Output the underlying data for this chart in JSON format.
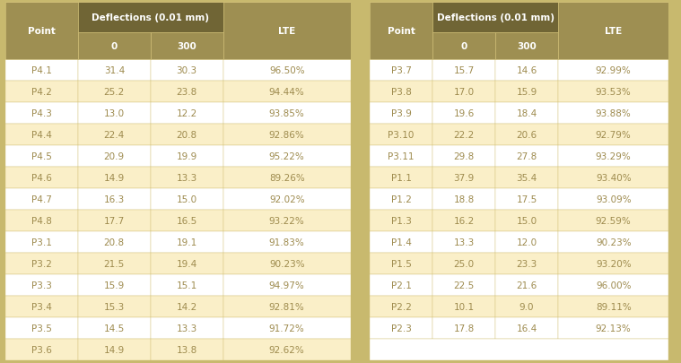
{
  "left_table": {
    "rows": [
      [
        "P4.1",
        "31.4",
        "30.3",
        "96.50%"
      ],
      [
        "P4.2",
        "25.2",
        "23.8",
        "94.44%"
      ],
      [
        "P4.3",
        "13.0",
        "12.2",
        "93.85%"
      ],
      [
        "P4.4",
        "22.4",
        "20.8",
        "92.86%"
      ],
      [
        "P4.5",
        "20.9",
        "19.9",
        "95.22%"
      ],
      [
        "P4.6",
        "14.9",
        "13.3",
        "89.26%"
      ],
      [
        "P4.7",
        "16.3",
        "15.0",
        "92.02%"
      ],
      [
        "P4.8",
        "17.7",
        "16.5",
        "93.22%"
      ],
      [
        "P3.1",
        "20.8",
        "19.1",
        "91.83%"
      ],
      [
        "P3.2",
        "21.5",
        "19.4",
        "90.23%"
      ],
      [
        "P3.3",
        "15.9",
        "15.1",
        "94.97%"
      ],
      [
        "P3.4",
        "15.3",
        "14.2",
        "92.81%"
      ],
      [
        "P3.5",
        "14.5",
        "13.3",
        "91.72%"
      ],
      [
        "P3.6",
        "14.9",
        "13.8",
        "92.62%"
      ]
    ]
  },
  "right_table": {
    "rows": [
      [
        "P3.7",
        "15.7",
        "14.6",
        "92.99%"
      ],
      [
        "P3.8",
        "17.0",
        "15.9",
        "93.53%"
      ],
      [
        "P3.9",
        "19.6",
        "18.4",
        "93.88%"
      ],
      [
        "P3.10",
        "22.2",
        "20.6",
        "92.79%"
      ],
      [
        "P3.11",
        "29.8",
        "27.8",
        "93.29%"
      ],
      [
        "P1.1",
        "37.9",
        "35.4",
        "93.40%"
      ],
      [
        "P1.2",
        "18.8",
        "17.5",
        "93.09%"
      ],
      [
        "P1.3",
        "16.2",
        "15.0",
        "92.59%"
      ],
      [
        "P1.4",
        "13.3",
        "12.0",
        "90.23%"
      ],
      [
        "P1.5",
        "25.0",
        "23.3",
        "93.20%"
      ],
      [
        "P2.1",
        "22.5",
        "21.6",
        "96.00%"
      ],
      [
        "P2.2",
        "10.1",
        "9.0",
        "89.11%"
      ],
      [
        "P2.3",
        "17.8",
        "16.4",
        "92.13%"
      ]
    ]
  },
  "header_bg_dark": "#706535",
  "header_bg_medium": "#9e8f52",
  "row_bg_light": "#faefc8",
  "row_bg_white": "#ffffff",
  "text_color_header": "#ffffff",
  "text_color_data": "#9e8b4e",
  "outer_bg": "#c8b96e",
  "divider_color": "#d4c27a",
  "font_size_header1": 7.5,
  "font_size_header2": 7.5,
  "font_size_data": 7.5
}
